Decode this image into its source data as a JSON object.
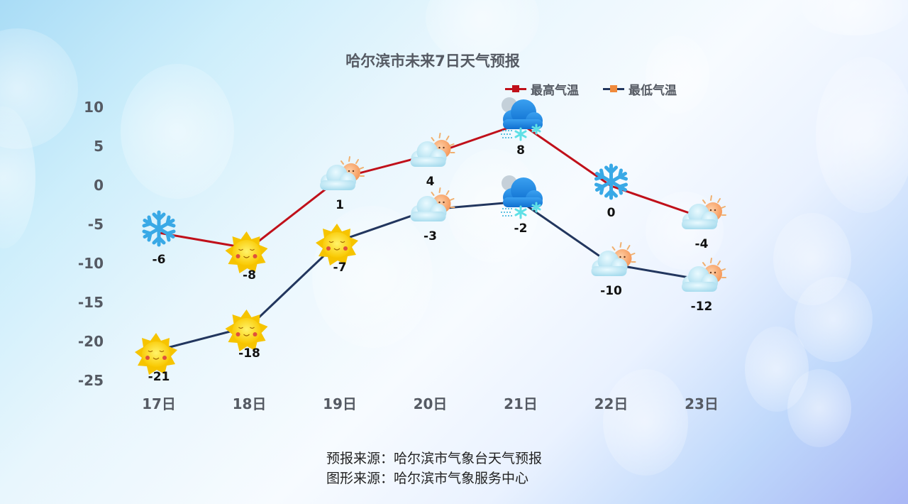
{
  "title": "哈尔滨市未来7日天气预报",
  "legend": [
    {
      "label": "最高气温",
      "line_color": "#c0101a",
      "marker_color": "#c0101a"
    },
    {
      "label": "最低气温",
      "line_color": "#22365e",
      "marker_color": "#f08a3c"
    }
  ],
  "footer": {
    "line1": "预报来源：哈尔滨市气象台天气预报",
    "line2": "图形来源：哈尔滨市气象服务中心"
  },
  "chart_data": {
    "type": "line",
    "title": "哈尔滨市未来7日天气预报",
    "xlabel": "",
    "ylabel": "",
    "categories": [
      "17日",
      "18日",
      "19日",
      "20日",
      "21日",
      "22日",
      "23日"
    ],
    "series": [
      {
        "name": "最高气温",
        "values": [
          -6,
          -8,
          1,
          4,
          8,
          0,
          -4
        ],
        "color": "#c0101a",
        "icons": [
          "snowflake",
          "sun",
          "partly-cloudy",
          "partly-cloudy",
          "snow-cloud",
          "snowflake",
          "partly-cloudy"
        ]
      },
      {
        "name": "最低气温",
        "values": [
          -21,
          -18,
          -7,
          -3,
          -2,
          -10,
          -12
        ],
        "color": "#22365e",
        "icons": [
          "sun",
          "sun",
          "sun",
          "partly-cloudy",
          "snow-cloud",
          "partly-cloudy",
          "partly-cloudy"
        ]
      }
    ],
    "yticks": [
      10,
      5,
      0,
      -5,
      -10,
      -15,
      -20,
      -25
    ],
    "ylim": [
      -25,
      10
    ],
    "grid": false,
    "legend_position": "top-right",
    "data_labels": true
  }
}
